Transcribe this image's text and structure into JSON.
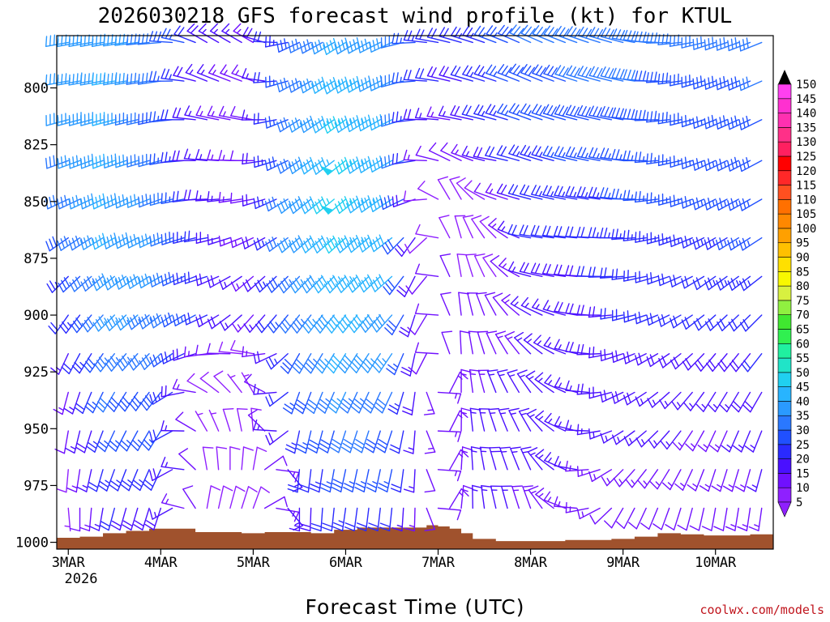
{
  "chart_data": {
    "type": "wind-profile",
    "title": "2026030218 GFS forecast wind profile (kt) for KTUL",
    "xlabel": "Forecast Time (UTC)",
    "ylabel": "",
    "source": "coolwx.com/models",
    "y_axis": {
      "units": "hPa",
      "range": [
        1003,
        777
      ],
      "ticks": [
        800,
        825,
        850,
        875,
        900,
        925,
        950,
        975,
        1000
      ],
      "tick_labels": [
        "800",
        "825",
        "850",
        "875",
        "900",
        "925",
        "950",
        "975",
        "1000"
      ]
    },
    "x_axis": {
      "units": "hours from 2026-03-03 00Z",
      "range": [
        -3,
        183
      ],
      "ticks": [
        0,
        24,
        48,
        72,
        96,
        120,
        144,
        168
      ],
      "tick_labels": [
        "3MAR",
        "4MAR",
        "5MAR",
        "6MAR",
        "7MAR",
        "8MAR",
        "9MAR",
        "10MAR"
      ],
      "first_year_label": "2026"
    },
    "colorbar": {
      "units": "kt",
      "levels": [
        5,
        10,
        15,
        20,
        25,
        30,
        35,
        40,
        45,
        50,
        55,
        60,
        65,
        70,
        75,
        80,
        85,
        90,
        95,
        100,
        105,
        110,
        115,
        120,
        125,
        130,
        135,
        140,
        145,
        150
      ],
      "labels": [
        "5",
        "10",
        "15",
        "20",
        "25",
        "30",
        "35",
        "40",
        "45",
        "50",
        "55",
        "60",
        "65",
        "70",
        "75",
        "80",
        "85",
        "90",
        "95",
        "100",
        "105",
        "110",
        "115",
        "120",
        "125",
        "130",
        "135",
        "140",
        "145",
        "150"
      ],
      "colors": [
        "#8f20ff",
        "#7010ff",
        "#4a10ff",
        "#2a2aff",
        "#2050ff",
        "#2a78ff",
        "#2a9aff",
        "#28b4ff",
        "#20d0f0",
        "#20e4c8",
        "#20f0a0",
        "#30f050",
        "#40e830",
        "#90f040",
        "#d8f040",
        "#f8f800",
        "#ffe000",
        "#ffc000",
        "#ffa000",
        "#ff8800",
        "#ff7000",
        "#ff5020",
        "#ff2828",
        "#ff0000",
        "#ff2060",
        "#ff3088",
        "#ff30b0",
        "#ff30d0",
        "#ff40f0",
        "#ff60ff"
      ]
    },
    "wind_field": {
      "levels_hpa": [
        780,
        797,
        814,
        832,
        849,
        866,
        883,
        900,
        917,
        934,
        951,
        968,
        985
      ],
      "time_hours": [
        0,
        3,
        6,
        9,
        12,
        15,
        18,
        21,
        24,
        27,
        30,
        33,
        36,
        39,
        42,
        45,
        48,
        51,
        54,
        57,
        60,
        63,
        66,
        69,
        72,
        75,
        78,
        81,
        84,
        87,
        90,
        93,
        96,
        99,
        102,
        105,
        108,
        111,
        114,
        117,
        120,
        123,
        126,
        129,
        132,
        135,
        138,
        141,
        144,
        147,
        150,
        153,
        156,
        159,
        162,
        165,
        168,
        171,
        174,
        177,
        180
      ],
      "keyframes": [
        {
          "t": 0,
          "rows": [
            [
              260,
              35
            ],
            [
              260,
              36
            ],
            [
              255,
              35
            ],
            [
              250,
              34
            ],
            [
              245,
              32
            ],
            [
              235,
              28
            ],
            [
              225,
              24
            ],
            [
              215,
              20
            ],
            [
              205,
              16
            ],
            [
              195,
              13
            ],
            [
              190,
              11
            ],
            [
              185,
              9
            ],
            [
              175,
              7
            ]
          ]
        },
        {
          "t": 12,
          "rows": [
            [
              260,
              38
            ],
            [
              260,
              40
            ],
            [
              255,
              40
            ],
            [
              250,
              40
            ],
            [
              245,
              40
            ],
            [
              240,
              40
            ],
            [
              232,
              38
            ],
            [
              225,
              36
            ],
            [
              218,
              33
            ],
            [
              210,
              30
            ],
            [
              205,
              27
            ],
            [
              200,
              24
            ],
            [
              195,
              20
            ]
          ]
        },
        {
          "t": 24,
          "rows": [
            [
              265,
              32
            ],
            [
              262,
              30
            ],
            [
              258,
              29
            ],
            [
              255,
              30
            ],
            [
              250,
              34
            ],
            [
              245,
              35
            ],
            [
              240,
              35
            ],
            [
              233,
              34
            ],
            [
              226,
              32
            ],
            [
              218,
              29
            ],
            [
              212,
              26
            ],
            [
              205,
              22
            ],
            [
              198,
              18
            ]
          ]
        },
        {
          "t": 36,
          "rows": [
            [
              300,
              18
            ],
            [
              292,
              16
            ],
            [
              282,
              15
            ],
            [
              275,
              16
            ],
            [
              268,
              18
            ],
            [
              260,
              20
            ],
            [
              252,
              21
            ],
            [
              245,
              22
            ],
            [
              262,
              13
            ],
            [
              300,
              8
            ],
            [
              330,
              7
            ],
            [
              350,
              8
            ],
            [
              10,
              8
            ]
          ]
        },
        {
          "t": 48,
          "rows": [
            [
              300,
              14
            ],
            [
              290,
              13
            ],
            [
              280,
              12
            ],
            [
              270,
              12
            ],
            [
              260,
              12
            ],
            [
              245,
              13
            ],
            [
              230,
              14
            ],
            [
              222,
              13
            ],
            [
              280,
              8
            ],
            [
              330,
              7
            ],
            [
              355,
              8
            ],
            [
              10,
              9
            ],
            [
              20,
              9
            ]
          ]
        },
        {
          "t": 60,
          "rows": [
            [
              245,
              28
            ],
            [
              242,
              30
            ],
            [
              238,
              32
            ],
            [
              236,
              34
            ],
            [
              232,
              36
            ],
            [
              230,
              36
            ],
            [
              224,
              33
            ],
            [
              218,
              30
            ],
            [
              210,
              28
            ],
            [
              200,
              26
            ],
            [
              192,
              23
            ],
            [
              185,
              20
            ],
            [
              180,
              17
            ]
          ]
        },
        {
          "t": 72,
          "rows": [
            [
              238,
              40
            ],
            [
              236,
              44
            ],
            [
              234,
              46
            ],
            [
              232,
              48
            ],
            [
              230,
              48
            ],
            [
              228,
              46
            ],
            [
              224,
              44
            ],
            [
              218,
              42
            ],
            [
              212,
              40
            ],
            [
              205,
              36
            ],
            [
              198,
              32
            ],
            [
              192,
              28
            ],
            [
              188,
              23
            ]
          ]
        },
        {
          "t": 84,
          "rows": [
            [
              245,
              36
            ],
            [
              245,
              38
            ],
            [
              243,
              40
            ],
            [
              240,
              40
            ],
            [
              237,
              41
            ],
            [
              233,
              40
            ],
            [
              228,
              40
            ],
            [
              222,
              39
            ],
            [
              214,
              35
            ],
            [
              205,
              31
            ],
            [
              198,
              28
            ],
            [
              192,
              25
            ],
            [
              186,
              20
            ]
          ]
        },
        {
          "t": 92,
          "rows": [
            [
              275,
              24
            ],
            [
              272,
              22
            ],
            [
              270,
              18
            ],
            [
              268,
              14
            ],
            [
              255,
              10
            ],
            [
              210,
              10
            ],
            [
              200,
              12
            ],
            [
              190,
              12
            ],
            [
              185,
              12
            ],
            [
              182,
              13
            ],
            [
              180,
              13
            ],
            [
              180,
              12
            ],
            [
              180,
              11
            ]
          ]
        },
        {
          "t": 100,
          "rows": [
            [
              285,
              20
            ],
            [
              285,
              18
            ],
            [
              280,
              14
            ],
            [
              300,
              10
            ],
            [
              340,
              8
            ],
            [
              350,
              9
            ],
            [
              355,
              10
            ],
            [
              358,
              11
            ],
            [
              2,
              12
            ],
            [
              5,
              13
            ],
            [
              5,
              14
            ],
            [
              8,
              14
            ],
            [
              10,
              13
            ]
          ]
        },
        {
          "t": 110,
          "rows": [
            [
              290,
              25
            ],
            [
              288,
              24
            ],
            [
              285,
              22
            ],
            [
              280,
              18
            ],
            [
              290,
              10
            ],
            [
              320,
              8
            ],
            [
              330,
              8
            ],
            [
              335,
              10
            ],
            [
              338,
              12
            ],
            [
              340,
              15
            ],
            [
              343,
              17
            ],
            [
              345,
              18
            ],
            [
              348,
              17
            ]
          ]
        },
        {
          "t": 120,
          "rows": [
            [
              295,
              30
            ],
            [
              293,
              29
            ],
            [
              290,
              27
            ],
            [
              288,
              24
            ],
            [
              285,
              22
            ],
            [
              280,
              20
            ],
            [
              285,
              17
            ],
            [
              300,
              15
            ],
            [
              315,
              15
            ],
            [
              325,
              16
            ],
            [
              330,
              17
            ],
            [
              335,
              16
            ],
            [
              340,
              14
            ]
          ]
        },
        {
          "t": 144,
          "rows": [
            [
              285,
              32
            ],
            [
              283,
              31
            ],
            [
              280,
              29
            ],
            [
              278,
              27
            ],
            [
              275,
              25
            ],
            [
              270,
              23
            ],
            [
              266,
              21
            ],
            [
              260,
              20
            ],
            [
              252,
              19
            ],
            [
              245,
              18
            ],
            [
              238,
              17
            ],
            [
              225,
              14
            ],
            [
              210,
              12
            ]
          ]
        },
        {
          "t": 168,
          "rows": [
            [
              252,
              30
            ],
            [
              250,
              28
            ],
            [
              248,
              27
            ],
            [
              245,
              26
            ],
            [
              243,
              25
            ],
            [
              240,
              24
            ],
            [
              235,
              22
            ],
            [
              228,
              20
            ],
            [
              220,
              18
            ],
            [
              212,
              16
            ],
            [
              205,
              14
            ],
            [
              198,
              13
            ],
            [
              190,
              12
            ]
          ]
        },
        {
          "t": 180,
          "rows": [
            [
              248,
              32
            ],
            [
              246,
              30
            ],
            [
              244,
              29
            ],
            [
              242,
              28
            ],
            [
              240,
              27
            ],
            [
              237,
              26
            ],
            [
              232,
              24
            ],
            [
              225,
              22
            ],
            [
              218,
              20
            ],
            [
              210,
              18
            ],
            [
              202,
              16
            ],
            [
              195,
              15
            ],
            [
              188,
              13
            ]
          ]
        }
      ]
    },
    "surface_pressure": {
      "units": "hPa",
      "hours": [
        -3,
        3,
        9,
        15,
        21,
        27,
        33,
        39,
        45,
        51,
        57,
        63,
        69,
        75,
        81,
        87,
        93,
        96,
        99,
        102,
        105,
        111,
        117,
        123,
        129,
        135,
        141,
        147,
        153,
        159,
        165,
        171,
        177,
        183
      ],
      "values": [
        998,
        997.5,
        996,
        995,
        994,
        994,
        995.5,
        995.5,
        996,
        995.5,
        995.5,
        996,
        994.5,
        993.5,
        993.5,
        993.5,
        992.5,
        993,
        994,
        996,
        998.5,
        999.5,
        999.5,
        999.5,
        999,
        999,
        998.5,
        997.5,
        996,
        996.5,
        997,
        997,
        996.5,
        995.5
      ]
    }
  }
}
